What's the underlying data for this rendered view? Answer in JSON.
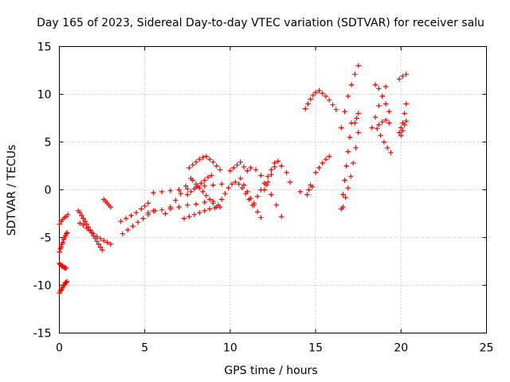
{
  "chart_data": {
    "type": "scatter",
    "title": "Day 165 of 2023, Sidereal Day-to-day VTEC variation (SDTVAR) for receiver salu",
    "xlabel": "GPS time / hours",
    "ylabel": "SDTVAR / TECUs",
    "xlim": [
      0,
      25
    ],
    "ylim": [
      -15,
      15
    ],
    "x_ticks": [
      0,
      5,
      10,
      15,
      20,
      25
    ],
    "y_ticks": [
      -15,
      -10,
      -5,
      0,
      5,
      10,
      15
    ],
    "x_tick_labels": [
      "0",
      "5",
      "10",
      "15",
      "20",
      "25"
    ],
    "y_tick_labels": [
      "-15",
      "-10",
      "-5",
      "0",
      "5",
      "10",
      "15"
    ],
    "grid": true,
    "legend": "none",
    "marker": "plus",
    "color": "#ff0000",
    "series": [
      {
        "x": [
          0.0,
          0.05,
          0.1,
          0.15,
          0.2,
          0.25,
          0.3,
          0.35,
          0.4,
          0.45
        ],
        "y": [
          -10.8,
          -10.6,
          -10.5,
          -10.4,
          -10.2,
          -10.0,
          -9.9,
          -9.7,
          -9.7,
          -9.6
        ]
      },
      {
        "x": [
          0.0,
          0.05,
          0.1,
          0.15,
          0.2,
          0.25,
          0.3,
          0.35,
          0.4
        ],
        "y": [
          -7.7,
          -7.8,
          -7.9,
          -8.0,
          -8.0,
          -8.1,
          -8.1,
          -8.2,
          -8.2
        ]
      },
      {
        "x": [
          0.0,
          0.05,
          0.1,
          0.15,
          0.2,
          0.25,
          0.3,
          0.35,
          0.4,
          0.45
        ],
        "y": [
          -6.5,
          -6.2,
          -6.0,
          -5.7,
          -5.5,
          -5.2,
          -5.0,
          -4.8,
          -4.6,
          -4.5
        ]
      },
      {
        "x": [
          0.0,
          0.1,
          0.2,
          0.3,
          0.4,
          0.5
        ],
        "y": [
          -3.6,
          -3.3,
          -3.1,
          -2.9,
          -2.8,
          -2.6
        ]
      },
      {
        "x": [
          1.1,
          1.2,
          1.3,
          1.4,
          1.5,
          1.6,
          1.7,
          1.8,
          1.9,
          2.0,
          2.1,
          2.2,
          2.3,
          2.4,
          2.5
        ],
        "y": [
          -2.2,
          -2.4,
          -2.7,
          -3.0,
          -3.3,
          -3.6,
          -3.9,
          -4.2,
          -4.5,
          -4.8,
          -5.1,
          -5.4,
          -5.7,
          -6.0,
          -6.3
        ]
      },
      {
        "x": [
          1.2,
          1.4,
          1.6,
          1.8,
          2.0,
          2.2,
          2.4,
          2.6,
          2.8,
          3.0
        ],
        "y": [
          -3.5,
          -3.7,
          -4.0,
          -4.3,
          -4.6,
          -4.9,
          -5.1,
          -5.3,
          -5.5,
          -5.7
        ]
      },
      {
        "x": [
          2.6,
          2.7,
          2.8,
          2.9,
          3.0
        ],
        "y": [
          -1.0,
          -1.2,
          -1.4,
          -1.6,
          -1.8
        ]
      },
      {
        "x": [
          3.6,
          3.9,
          4.2,
          4.5,
          4.8,
          5.0,
          5.2
        ],
        "y": [
          -3.3,
          -3.0,
          -2.7,
          -2.4,
          -2.0,
          -1.7,
          -1.4
        ]
      },
      {
        "x": [
          3.7,
          4.0,
          4.3,
          4.6,
          4.9,
          5.2,
          5.5
        ],
        "y": [
          -4.6,
          -4.2,
          -3.8,
          -3.4,
          -3.0,
          -2.6,
          -2.2
        ]
      },
      {
        "x": [
          5.5,
          6.0,
          6.5,
          7.0,
          7.5,
          8.0,
          8.5,
          9.0,
          9.5
        ],
        "y": [
          -0.3,
          -0.2,
          -0.1,
          0.0,
          0.1,
          0.3,
          0.4,
          0.5,
          0.6
        ]
      },
      {
        "x": [
          5.2,
          5.6,
          6.0,
          6.5,
          7.0,
          7.5,
          8.0,
          8.5,
          9.0
        ],
        "y": [
          -2.4,
          -2.2,
          -2.1,
          -2.0,
          -1.8,
          -1.6,
          -1.5,
          -1.3,
          -1.2
        ]
      },
      {
        "x": [
          7.3,
          7.6,
          7.9,
          8.2,
          8.5,
          8.8,
          9.1,
          9.4
        ],
        "y": [
          -3.0,
          -2.8,
          -2.6,
          -2.4,
          -2.2,
          -2.0,
          -1.9,
          -1.8
        ]
      },
      {
        "x": [
          6.2,
          6.5,
          6.8,
          7.1,
          7.4,
          7.7
        ],
        "y": [
          -2.5,
          -1.8,
          -1.1,
          -0.4,
          0.4,
          1.2
        ]
      },
      {
        "x": [
          7.6,
          7.8,
          8.0,
          8.2,
          8.4,
          8.6,
          8.8,
          9.0,
          9.2,
          9.4
        ],
        "y": [
          2.3,
          2.6,
          2.9,
          3.2,
          3.4,
          3.5,
          3.2,
          2.9,
          2.5,
          2.1
        ]
      },
      {
        "x": [
          7.5,
          7.7,
          7.9,
          8.1,
          8.3,
          8.5,
          8.7,
          8.9
        ],
        "y": [
          -0.5,
          -0.2,
          0.1,
          0.4,
          0.7,
          1.0,
          1.3,
          1.5
        ]
      },
      {
        "x": [
          7.8,
          8.0,
          8.2,
          8.4,
          8.6,
          8.8,
          9.0,
          9.2
        ],
        "y": [
          1.0,
          0.6,
          0.2,
          -0.2,
          -0.6,
          -1.0,
          -1.4,
          -1.8
        ]
      },
      {
        "x": [
          9.3,
          9.5,
          9.7,
          9.9,
          10.1,
          10.3,
          10.5,
          10.7,
          10.9,
          11.1,
          11.3
        ],
        "y": [
          -1.6,
          -1.0,
          -0.4,
          0.2,
          0.6,
          0.8,
          0.6,
          0.2,
          -0.4,
          -1.0,
          -1.6
        ]
      },
      {
        "x": [
          10.0,
          10.2,
          10.4,
          10.6,
          10.8,
          11.0
        ],
        "y": [
          2.0,
          2.3,
          2.6,
          2.9,
          2.4,
          2.0
        ]
      },
      {
        "x": [
          10.6,
          10.8,
          11.0,
          11.2,
          11.4,
          11.6,
          11.8
        ],
        "y": [
          1.2,
          0.5,
          -0.2,
          -0.9,
          -1.6,
          -2.3,
          -2.9
        ]
      },
      {
        "x": [
          11.2,
          11.5,
          11.8,
          12.1,
          12.4,
          12.7,
          13.0
        ],
        "y": [
          2.3,
          2.1,
          1.5,
          0.5,
          -0.5,
          -1.6,
          -2.8
        ]
      },
      {
        "x": [
          11.4,
          11.6,
          11.8,
          12.0,
          12.2,
          12.4,
          12.6
        ],
        "y": [
          -1.4,
          -0.7,
          0.0,
          0.7,
          1.4,
          2.1,
          2.8
        ]
      },
      {
        "x": [
          12.0,
          12.2,
          12.4,
          12.6,
          12.8,
          13.0
        ],
        "y": [
          0.0,
          0.8,
          1.6,
          2.4,
          3.0,
          2.5
        ]
      },
      {
        "x": [
          13.3,
          13.5,
          14.1
        ],
        "y": [
          1.8,
          0.8,
          -0.2
        ]
      },
      {
        "x": [
          14.5,
          14.6,
          14.7,
          14.8
        ],
        "y": [
          -0.5,
          0.0,
          0.5,
          0.3
        ]
      },
      {
        "x": [
          14.4,
          14.55,
          14.7,
          14.85,
          15.0
        ],
        "y": [
          8.5,
          9.0,
          9.5,
          9.9,
          10.2
        ]
      },
      {
        "x": [
          15.0,
          15.2,
          15.4,
          15.6,
          15.8
        ],
        "y": [
          1.8,
          2.3,
          2.8,
          3.2,
          3.5
        ]
      },
      {
        "x": [
          15.2,
          15.4,
          15.6,
          15.8,
          16.0,
          16.2
        ],
        "y": [
          10.4,
          10.1,
          9.8,
          9.4,
          8.9,
          8.4
        ]
      },
      {
        "x": [
          16.5,
          16.7,
          16.9,
          17.1,
          17.3,
          17.5
        ],
        "y": [
          6.5,
          8.2,
          9.8,
          11.0,
          12.1,
          13.0
        ]
      },
      {
        "x": [
          16.5,
          16.6,
          16.7,
          16.8,
          16.9,
          17.0,
          17.1
        ],
        "y": [
          -2.0,
          -0.5,
          1.0,
          2.5,
          4.0,
          5.5,
          7.0
        ]
      },
      {
        "x": [
          16.6,
          16.75,
          16.9,
          17.05,
          17.2,
          17.35,
          17.5
        ],
        "y": [
          -1.8,
          -0.8,
          0.2,
          1.4,
          2.8,
          4.4,
          6.0
        ]
      },
      {
        "x": [
          17.3,
          17.4,
          17.5
        ],
        "y": [
          7.0,
          7.5,
          8.0
        ]
      },
      {
        "x": [
          18.3,
          18.5,
          18.7,
          18.9,
          19.1
        ],
        "y": [
          6.5,
          7.6,
          8.8,
          9.8,
          10.8
        ]
      },
      {
        "x": [
          18.5,
          18.7,
          18.9,
          19.1,
          19.3
        ],
        "y": [
          11.0,
          10.6,
          9.8,
          9.0,
          8.2
        ]
      },
      {
        "x": [
          18.6,
          18.8,
          19.0,
          19.2,
          19.4
        ],
        "y": [
          6.4,
          5.7,
          5.0,
          4.4,
          3.9
        ]
      },
      {
        "x": [
          18.7,
          18.9,
          19.1,
          19.3
        ],
        "y": [
          6.8,
          7.1,
          7.3,
          7.0
        ]
      },
      {
        "x": [
          19.9,
          20.1,
          20.3
        ],
        "y": [
          11.6,
          11.9,
          12.1
        ]
      },
      {
        "x": [
          19.9,
          20.0,
          20.1,
          20.2,
          20.3
        ],
        "y": [
          6.0,
          6.5,
          7.0,
          8.0,
          9.0
        ]
      },
      {
        "x": [
          20.0,
          20.1,
          20.2,
          20.3
        ],
        "y": [
          5.7,
          6.2,
          6.8,
          7.2
        ]
      }
    ]
  }
}
